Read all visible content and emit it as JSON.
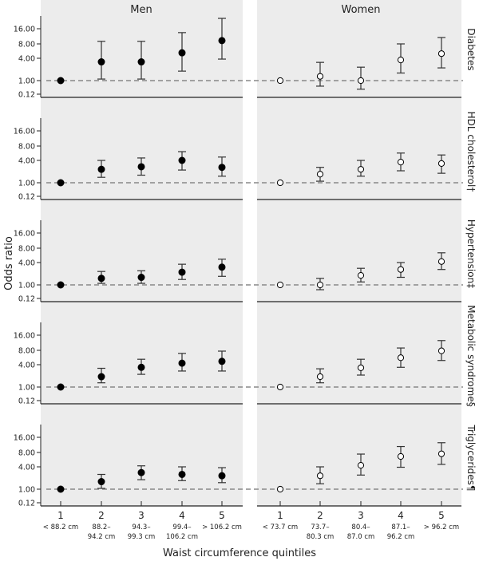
{
  "chart_data": {
    "type": "scatter",
    "subtype": "forest plot with error bars (log scale)",
    "ylabel": "Odds ratio",
    "xlabel": "Waist circumference quintiles",
    "yticks": [
      "16.00",
      "8.00",
      "4.00",
      "1.00",
      "0.12"
    ],
    "ytick_values": [
      16,
      8,
      4,
      1,
      0.12
    ],
    "reference_line": 1.0,
    "columns": [
      {
        "name": "Men",
        "marker": "filled",
        "quintiles": [
          {
            "n": "1",
            "range": [
              "< 88.2 cm"
            ]
          },
          {
            "n": "2",
            "range": [
              "88.2–",
              "94.2 cm"
            ]
          },
          {
            "n": "3",
            "range": [
              "94.3–",
              "99.3 cm"
            ]
          },
          {
            "n": "4",
            "range": [
              "99.4–",
              "106.2 cm"
            ]
          },
          {
            "n": "5",
            "range": [
              "> 106.2 cm"
            ]
          }
        ]
      },
      {
        "name": "Women",
        "marker": "open",
        "quintiles": [
          {
            "n": "1",
            "range": [
              "< 73.7 cm"
            ]
          },
          {
            "n": "2",
            "range": [
              "73.7–",
              "80.3 cm"
            ]
          },
          {
            "n": "3",
            "range": [
              "80.4–",
              "87.0 cm"
            ]
          },
          {
            "n": "4",
            "range": [
              "87.1–",
              "96.2 cm"
            ]
          },
          {
            "n": "5",
            "range": [
              "> 96.2 cm"
            ]
          }
        ]
      }
    ],
    "panels": [
      {
        "outcome": "Diabetes",
        "men": {
          "or": [
            1,
            3.2,
            3.2,
            5.2,
            9.3
          ],
          "lower": [
            null,
            1.1,
            1.1,
            1.8,
            3.8
          ],
          "upper": [
            null,
            9,
            9,
            13.4,
            25.7
          ]
        },
        "women": {
          "or": [
            1,
            1.3,
            1.0,
            3.6,
            5.0
          ],
          "lower": [
            null,
            0.42,
            0.26,
            1.6,
            2.2
          ],
          "upper": [
            null,
            3.1,
            2.3,
            8,
            10.7
          ]
        }
      },
      {
        "outcome": "HDL cholesterol†",
        "men": {
          "or": [
            1,
            2.3,
            2.7,
            4.0,
            2.6
          ],
          "lower": [
            null,
            1.4,
            1.6,
            2.2,
            1.5
          ],
          "upper": [
            null,
            4.0,
            4.5,
            6.1,
            4.7
          ]
        },
        "women": {
          "or": [
            1,
            1.7,
            2.3,
            3.6,
            3.3
          ],
          "lower": [
            null,
            1.1,
            1.5,
            2.1,
            1.8
          ],
          "upper": [
            null,
            2.6,
            4.0,
            5.7,
            5.2
          ]
        }
      },
      {
        "outcome": "Hypertension‡",
        "men": {
          "or": [
            1,
            1.5,
            1.6,
            2.2,
            3.0
          ],
          "lower": [
            null,
            1.1,
            1.1,
            1.4,
            1.7
          ],
          "upper": [
            null,
            2.3,
            2.4,
            3.6,
            4.7
          ]
        },
        "women": {
          "or": [
            1,
            1.0,
            1.8,
            2.6,
            4.2
          ],
          "lower": [
            null,
            0.47,
            1.2,
            1.6,
            2.6
          ],
          "upper": [
            null,
            1.5,
            2.8,
            4.0,
            6.4
          ]
        }
      },
      {
        "outcome": "Metabolic syndrome§",
        "men": {
          "or": [
            1,
            1.9,
            3.4,
            4.3,
            4.7
          ],
          "lower": [
            null,
            1.3,
            2.2,
            2.7,
            2.7
          ],
          "upper": [
            null,
            3.2,
            5.2,
            6.9,
            7.7
          ]
        },
        "women": {
          "or": [
            1,
            1.9,
            3.3,
            5.6,
            7.8
          ],
          "lower": [
            null,
            1.3,
            2.1,
            3.4,
            4.9
          ],
          "upper": [
            null,
            3.1,
            5.2,
            8.9,
            12.5
          ]
        }
      },
      {
        "outcome": "Triglycerides¶",
        "men": {
          "or": [
            1,
            1.6,
            2.8,
            2.5,
            2.3
          ],
          "lower": [
            null,
            1.05,
            1.8,
            1.7,
            1.5
          ],
          "upper": [
            null,
            2.5,
            4.2,
            4.0,
            3.8
          ]
        },
        "women": {
          "or": [
            1,
            2.3,
            4.3,
            6.6,
            7.5
          ],
          "lower": [
            null,
            1.4,
            2.4,
            3.9,
            4.5
          ],
          "upper": [
            null,
            4.0,
            7.4,
            10.5,
            12.5
          ]
        }
      }
    ],
    "colors": {
      "panel_bg": "#ececec",
      "marker": "#000000",
      "errorbar": "#333333",
      "refline": "#888888"
    }
  }
}
